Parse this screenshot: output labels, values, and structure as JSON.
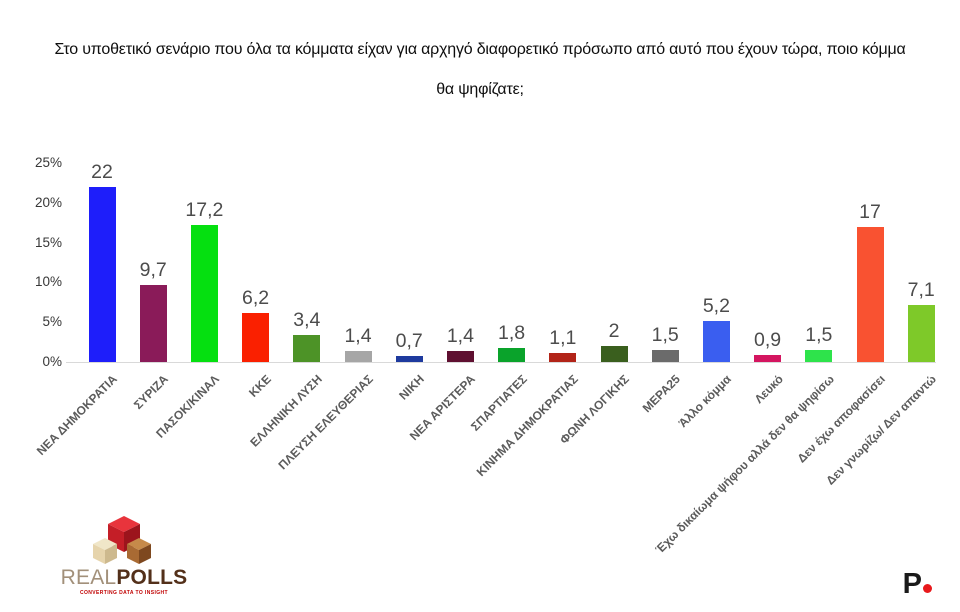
{
  "title": {
    "text": "Στο υποθετικό σενάριο που όλα τα κόμματα είχαν για αρχηγό διαφορετικό πρόσωπο από αυτό που έχουν τώρα, ποιο κόμμα θα ψηφίζατε;"
  },
  "chart_data": {
    "type": "bar",
    "title": "Στο υποθετικό σενάριο που όλα τα κόμματα είχαν για αρχηγό διαφορετικό πρόσωπο από αυτό που έχουν τώρα, ποιο κόμμα θα ψηφίζατε;",
    "categories": [
      "ΝΕΑ ΔΗΜΟΚΡΑΤΙΑ",
      "ΣΥΡΙΖΑ",
      "ΠΑΣΟΚ/ΚΙΝΑΛ",
      "ΚΚΕ",
      "ΕΛΛΗΝΙΚΗ ΛΥΣΗ",
      "ΠΛΕΥΣΗ ΕΛΕΥΘΕΡΙΑΣ",
      "ΝΙΚΗ",
      "ΝΕΑ ΑΡΙΣΤΕΡΑ",
      "ΣΠΑΡΤΙΑΤΕΣ",
      "ΚΙΝΗΜΑ ΔΗΜΟΚΡΑΤΙΑΣ",
      "ΦΩΝΗ ΛΟΓΙΚΗΣ",
      "ΜΕΡΑ25",
      "Άλλο κόμμα",
      "Λευκό",
      "Έχω δικαίωμα ψήφου αλλά δεν θα ψηφίσω",
      "Δεν έχω αποφασίσει",
      "Δεν γνωρίζω/ Δεν απαντώ"
    ],
    "values": [
      22,
      9.7,
      17.2,
      6.2,
      3.4,
      1.4,
      0.7,
      1.4,
      1.8,
      1.1,
      2,
      1.5,
      5.2,
      0.9,
      1.5,
      17,
      7.1
    ],
    "value_labels": [
      "22",
      "9,7",
      "17,2",
      "6,2",
      "3,4",
      "1,4",
      "0,7",
      "1,4",
      "1,8",
      "1,1",
      "2",
      "1,5",
      "5,2",
      "0,9",
      "1,5",
      "17",
      "7,1"
    ],
    "bar_colors": [
      "#1e1efa",
      "#8a1b59",
      "#05e010",
      "#fa2000",
      "#4d9327",
      "#a6a6a6",
      "#1e3a9e",
      "#5f1031",
      "#0aa32b",
      "#b22418",
      "#3a5f1e",
      "#6b6b6b",
      "#3a5ef0",
      "#d41560",
      "#2ee34b",
      "#f95231",
      "#7ec929"
    ],
    "y_ticks": [
      "0%",
      "5%",
      "10%",
      "15%",
      "20%",
      "25%"
    ],
    "ylim": [
      0,
      25
    ],
    "grid": false,
    "legend": false,
    "x_tick_rotation_deg": -45,
    "decimal_separator": ","
  },
  "footer": {
    "realpolls_logo": {
      "word1": "REAL",
      "word2": "POLLS",
      "tagline": "CONVERTING DATA TO INSIGHT"
    },
    "politic_logo": {
      "letter": "P",
      "dot_color": "#e8191c"
    }
  }
}
